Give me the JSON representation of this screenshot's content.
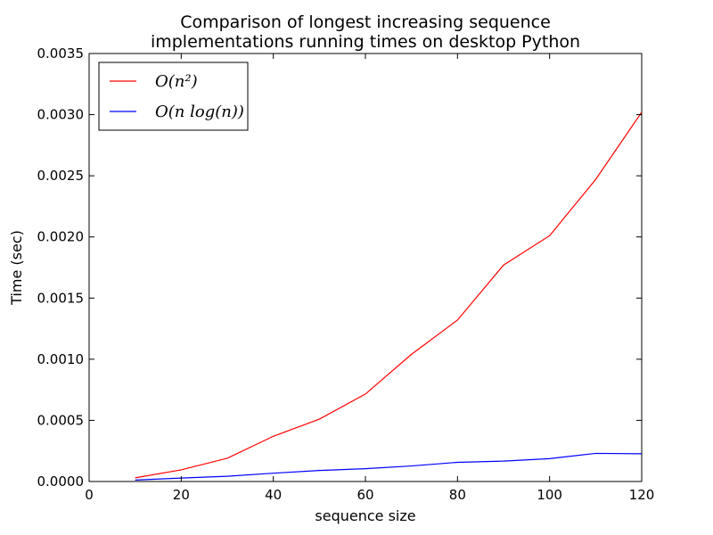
{
  "chart_data": {
    "type": "line",
    "title": [
      "Comparison of longest increasing sequence",
      "implementations running times on desktop Python"
    ],
    "xlabel": "sequence size",
    "ylabel": "Time (sec)",
    "xlim": [
      0,
      120
    ],
    "ylim": [
      0,
      0.0035
    ],
    "xticks": [
      0,
      20,
      40,
      60,
      80,
      100,
      120
    ],
    "xtick_labels": [
      "0",
      "20",
      "40",
      "60",
      "80",
      "100",
      "120"
    ],
    "yticks": [
      0,
      0.0005,
      0.001,
      0.0015,
      0.002,
      0.0025,
      0.003,
      0.0035
    ],
    "ytick_labels": [
      "0.0000",
      "0.0005",
      "0.0010",
      "0.0015",
      "0.0020",
      "0.0025",
      "0.0030",
      "0.0035"
    ],
    "grid": false,
    "legend_position": "top-left",
    "x": [
      10,
      20,
      30,
      40,
      50,
      60,
      70,
      80,
      90,
      100,
      110,
      120
    ],
    "series": [
      {
        "name": "O(n²)",
        "color": "#ff0000",
        "values": [
          3e-05,
          9.5e-05,
          0.00019,
          0.00037,
          0.00051,
          0.000715,
          0.00104,
          0.00132,
          0.00177,
          0.00201,
          0.00247,
          0.00302
        ]
      },
      {
        "name": "O(n log(n))",
        "color": "#0000ff",
        "values": [
          1.2e-05,
          2.8e-05,
          4.3e-05,
          6.8e-05,
          9e-05,
          0.000105,
          0.000127,
          0.000157,
          0.000167,
          0.000187,
          0.00023,
          0.000227
        ]
      }
    ]
  }
}
